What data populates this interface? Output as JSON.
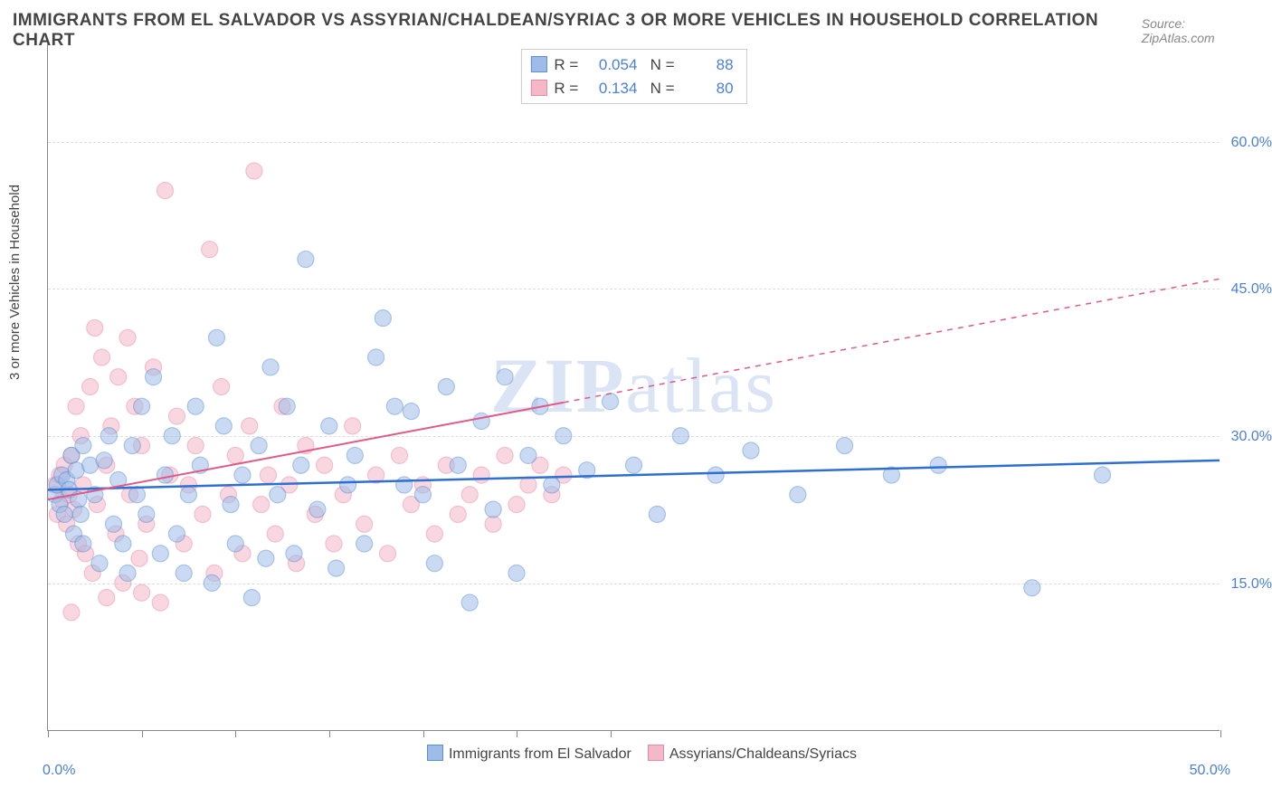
{
  "title": "IMMIGRANTS FROM EL SALVADOR VS ASSYRIAN/CHALDEAN/SYRIAC 3 OR MORE VEHICLES IN HOUSEHOLD CORRELATION CHART",
  "source": "Source: ZipAtlas.com",
  "y_axis_label": "3 or more Vehicles in Household",
  "watermark": "ZIPatlas",
  "chart": {
    "type": "scatter",
    "background_color": "#ffffff",
    "grid_color": "#dddddd",
    "axis_color": "#888888",
    "xlim": [
      0,
      50
    ],
    "ylim": [
      0,
      70
    ],
    "x_ticks_at": [
      0,
      4,
      8,
      12,
      16,
      20,
      24,
      50
    ],
    "x_tick_labels": {
      "left": "0.0%",
      "right": "50.0%"
    },
    "y_grid": [
      {
        "value": 15,
        "label": "15.0%"
      },
      {
        "value": 30,
        "label": "30.0%"
      },
      {
        "value": 45,
        "label": "45.0%"
      },
      {
        "value": 60,
        "label": "60.0%"
      }
    ],
    "tick_label_color": "#4a7fd8",
    "tick_label_fontsize": 16,
    "marker_radius": 9,
    "marker_opacity": 0.55,
    "line_width": 2
  },
  "series": {
    "a": {
      "label": "Immigrants from El Salvador",
      "color_fill": "#9fbce8",
      "color_stroke": "#5a8fd6",
      "R": "0.054",
      "N": "88",
      "regression": {
        "x1": 0,
        "y1": 24.5,
        "x2": 50,
        "y2": 27.5,
        "dashed": false,
        "color": "#2f6fd0"
      },
      "points": [
        [
          0.3,
          24
        ],
        [
          0.4,
          25
        ],
        [
          0.5,
          23
        ],
        [
          0.6,
          26
        ],
        [
          0.7,
          22
        ],
        [
          0.8,
          25.5
        ],
        [
          0.9,
          24.5
        ],
        [
          1.0,
          28
        ],
        [
          1.1,
          20
        ],
        [
          1.2,
          26.5
        ],
        [
          1.3,
          23.5
        ],
        [
          1.4,
          22
        ],
        [
          1.5,
          29
        ],
        [
          1.5,
          19
        ],
        [
          1.8,
          27
        ],
        [
          2.0,
          24
        ],
        [
          2.2,
          17
        ],
        [
          2.4,
          27.5
        ],
        [
          2.6,
          30
        ],
        [
          2.8,
          21
        ],
        [
          3.0,
          25.5
        ],
        [
          3.2,
          19
        ],
        [
          3.4,
          16
        ],
        [
          3.6,
          29
        ],
        [
          3.8,
          24
        ],
        [
          4.0,
          33
        ],
        [
          4.2,
          22
        ],
        [
          4.5,
          36
        ],
        [
          4.8,
          18
        ],
        [
          5.0,
          26
        ],
        [
          5.3,
          30
        ],
        [
          5.5,
          20
        ],
        [
          5.8,
          16
        ],
        [
          6.0,
          24
        ],
        [
          6.3,
          33
        ],
        [
          6.5,
          27
        ],
        [
          7.0,
          15
        ],
        [
          7.2,
          40
        ],
        [
          7.5,
          31
        ],
        [
          7.8,
          23
        ],
        [
          8.0,
          19
        ],
        [
          8.3,
          26
        ],
        [
          8.7,
          13.5
        ],
        [
          9.0,
          29
        ],
        [
          9.3,
          17.5
        ],
        [
          9.5,
          37
        ],
        [
          9.8,
          24
        ],
        [
          10.2,
          33
        ],
        [
          10.5,
          18
        ],
        [
          10.8,
          27
        ],
        [
          11.0,
          48
        ],
        [
          11.5,
          22.5
        ],
        [
          12.0,
          31
        ],
        [
          12.3,
          16.5
        ],
        [
          12.8,
          25
        ],
        [
          13.1,
          28
        ],
        [
          13.5,
          19
        ],
        [
          14.0,
          38
        ],
        [
          14.3,
          42
        ],
        [
          14.8,
          33
        ],
        [
          15.2,
          25
        ],
        [
          15.5,
          32.5
        ],
        [
          16.0,
          24
        ],
        [
          16.5,
          17
        ],
        [
          17.0,
          35
        ],
        [
          17.5,
          27
        ],
        [
          18.0,
          13
        ],
        [
          18.5,
          31.5
        ],
        [
          19.0,
          22.5
        ],
        [
          19.5,
          36
        ],
        [
          20.0,
          16
        ],
        [
          20.5,
          28
        ],
        [
          21.0,
          33
        ],
        [
          21.5,
          25
        ],
        [
          22.0,
          30
        ],
        [
          23.0,
          26.5
        ],
        [
          24.0,
          33.5
        ],
        [
          25.0,
          27
        ],
        [
          26.0,
          22
        ],
        [
          27.0,
          30
        ],
        [
          28.5,
          26
        ],
        [
          30.0,
          28.5
        ],
        [
          32.0,
          24
        ],
        [
          34.0,
          29
        ],
        [
          36.0,
          26
        ],
        [
          38.0,
          27
        ],
        [
          42.0,
          14.5
        ],
        [
          45.0,
          26
        ]
      ]
    },
    "b": {
      "label": "Assyrians/Chaldeans/Syriacs",
      "color_fill": "#f4b8c8",
      "color_stroke": "#e888a5",
      "R": "0.134",
      "N": "80",
      "regression": {
        "x1": 0,
        "y1": 23.5,
        "x2": 50,
        "y2": 46,
        "dashed_after_x": 22,
        "color": "#e05a88"
      },
      "points": [
        [
          0.3,
          25
        ],
        [
          0.4,
          22
        ],
        [
          0.5,
          26
        ],
        [
          0.6,
          23.5
        ],
        [
          0.7,
          27
        ],
        [
          0.8,
          21
        ],
        [
          0.9,
          24
        ],
        [
          1.0,
          28
        ],
        [
          1.1,
          22.5
        ],
        [
          1.2,
          33
        ],
        [
          1.3,
          19
        ],
        [
          1.4,
          30
        ],
        [
          1.5,
          25
        ],
        [
          1.6,
          18
        ],
        [
          1.8,
          35
        ],
        [
          1.9,
          16
        ],
        [
          2.0,
          41
        ],
        [
          2.1,
          23
        ],
        [
          2.3,
          38
        ],
        [
          2.5,
          27
        ],
        [
          2.7,
          31
        ],
        [
          2.9,
          20
        ],
        [
          3.0,
          36
        ],
        [
          3.2,
          15
        ],
        [
          3.4,
          40
        ],
        [
          3.5,
          24
        ],
        [
          3.7,
          33
        ],
        [
          3.9,
          17.5
        ],
        [
          4.0,
          29
        ],
        [
          4.2,
          21
        ],
        [
          4.5,
          37
        ],
        [
          4.8,
          13
        ],
        [
          5.0,
          55
        ],
        [
          5.2,
          26
        ],
        [
          5.5,
          32
        ],
        [
          5.8,
          19
        ],
        [
          6.0,
          25
        ],
        [
          6.3,
          29
        ],
        [
          6.6,
          22
        ],
        [
          6.9,
          49
        ],
        [
          7.1,
          16
        ],
        [
          7.4,
          35
        ],
        [
          7.7,
          24
        ],
        [
          8.0,
          28
        ],
        [
          8.3,
          18
        ],
        [
          8.6,
          31
        ],
        [
          8.8,
          57
        ],
        [
          9.1,
          23
        ],
        [
          9.4,
          26
        ],
        [
          9.7,
          20
        ],
        [
          10.0,
          33
        ],
        [
          10.3,
          25
        ],
        [
          10.6,
          17
        ],
        [
          11.0,
          29
        ],
        [
          11.4,
          22
        ],
        [
          11.8,
          27
        ],
        [
          12.2,
          19
        ],
        [
          12.6,
          24
        ],
        [
          13.0,
          31
        ],
        [
          13.5,
          21
        ],
        [
          14.0,
          26
        ],
        [
          14.5,
          18
        ],
        [
          15.0,
          28
        ],
        [
          15.5,
          23
        ],
        [
          16.0,
          25
        ],
        [
          16.5,
          20
        ],
        [
          17.0,
          27
        ],
        [
          17.5,
          22
        ],
        [
          18.0,
          24
        ],
        [
          18.5,
          26
        ],
        [
          19.0,
          21
        ],
        [
          19.5,
          28
        ],
        [
          20.0,
          23
        ],
        [
          20.5,
          25
        ],
        [
          21.0,
          27
        ],
        [
          21.5,
          24
        ],
        [
          22.0,
          26
        ],
        [
          1.0,
          12
        ],
        [
          2.5,
          13.5
        ],
        [
          4.0,
          14
        ]
      ]
    }
  },
  "top_legend": {
    "rows": [
      {
        "swatch": "a",
        "r_label": "R =",
        "r_val": "0.054",
        "n_label": "N =",
        "n_val": "88"
      },
      {
        "swatch": "b",
        "r_label": "R =",
        "r_val": "0.134",
        "n_label": "N =",
        "n_val": "80"
      }
    ]
  }
}
